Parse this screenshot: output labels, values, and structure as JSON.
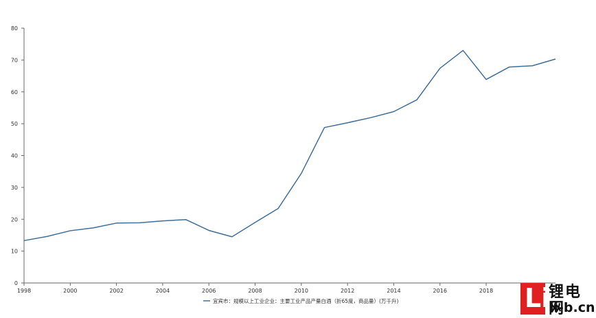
{
  "chart_data": {
    "type": "line",
    "x": [
      1998,
      1999,
      2000,
      2001,
      2002,
      2003,
      2004,
      2005,
      2006,
      2007,
      2008,
      2009,
      2010,
      2011,
      2012,
      2013,
      2014,
      2015,
      2016,
      2017,
      2018,
      2019,
      2020,
      2021
    ],
    "series": [
      {
        "name": "宜宾市：规模以上工业企业：主要工业产品产量白酒（折65度，商品量）(万千升)",
        "values": [
          13.3,
          14.6,
          16.4,
          17.3,
          18.8,
          18.9,
          19.5,
          19.9,
          16.5,
          14.5,
          19.0,
          23.4,
          34.4,
          48.8,
          50.3,
          51.9,
          53.8,
          57.5,
          67.4,
          73.0,
          63.9,
          67.8,
          68.2,
          70.3
        ]
      }
    ],
    "x_ticks": [
      "1998",
      "2000",
      "2002",
      "2004",
      "2006",
      "2008",
      "2010",
      "2012",
      "2014",
      "2016",
      "2018"
    ],
    "y_ticks": [
      "0",
      "10",
      "20",
      "30",
      "40",
      "50",
      "60",
      "70",
      "80"
    ],
    "xlim": [
      1998,
      2021
    ],
    "ylim": [
      0,
      80
    ],
    "title": "",
    "xlabel": "",
    "ylabel": "",
    "grid": false,
    "legend_position": "bottom-center",
    "line_color": "#3d6e99"
  },
  "watermark": {
    "letter": "Li",
    "chinese": "锂电网",
    "domain": "li-b.cn"
  }
}
